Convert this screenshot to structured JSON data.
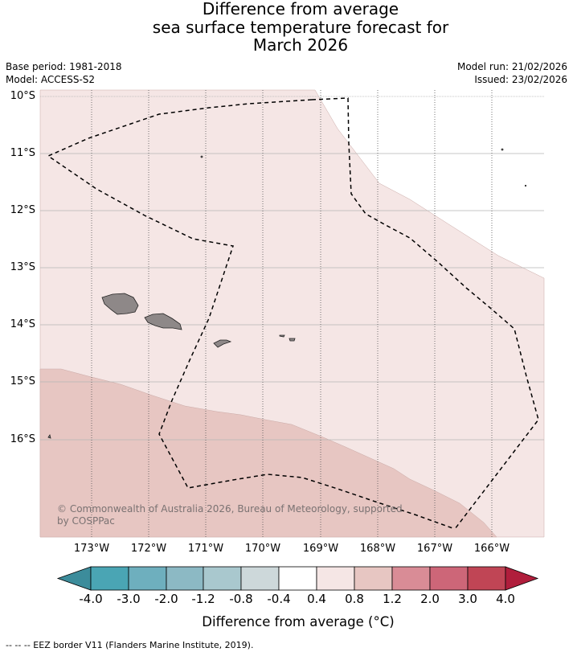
{
  "title": {
    "line1": "Difference from average",
    "line2": "sea surface temperature forecast for",
    "line3": "March 2026"
  },
  "meta": {
    "base_period": "Base period: 1981-2018",
    "model": "Model: ACCESS-S2",
    "model_run": "Model run: 21/02/2026",
    "issued": "Issued: 23/02/2026"
  },
  "map": {
    "lat_labels": [
      "10°S",
      "11°S",
      "12°S",
      "13°S",
      "14°S",
      "15°S",
      "16°S"
    ],
    "lon_labels": [
      "173°W",
      "172°W",
      "171°W",
      "170°W",
      "169°W",
      "168°W",
      "167°W",
      "166°W"
    ],
    "copyright": "© Commonwealth of Australia 2026, Bureau of Meteorology, supported by COSPPac",
    "regions": [
      {
        "name": "0.4 to 0.8 anomaly",
        "color": "#f5e6e5"
      },
      {
        "name": "0.8 to 1.2 anomaly",
        "color": "#e7c6c2"
      }
    ],
    "land_color": "#8e8888"
  },
  "colorbar": {
    "bounds": [
      "-4.0",
      "-3.0",
      "-2.0",
      "-1.2",
      "-0.8",
      "-0.4",
      "0.4",
      "0.8",
      "1.2",
      "2.0",
      "3.0",
      "4.0"
    ],
    "colors": [
      "#3c8c9b",
      "#4aa5b4",
      "#6eafbe",
      "#8cb9c4",
      "#a9c8ce",
      "#cdd8da",
      "#ffffff",
      "#f5e6e5",
      "#e7c6c2",
      "#d98c96",
      "#cd6678",
      "#c04555",
      "#b01e3c"
    ],
    "title": "Difference from average ($^\\circ$C)",
    "title_display": "Difference from average (°C)"
  },
  "footer": {
    "legend": "--  --  -- EEZ border V11 (Flanders Marine Institute, 2019)."
  }
}
